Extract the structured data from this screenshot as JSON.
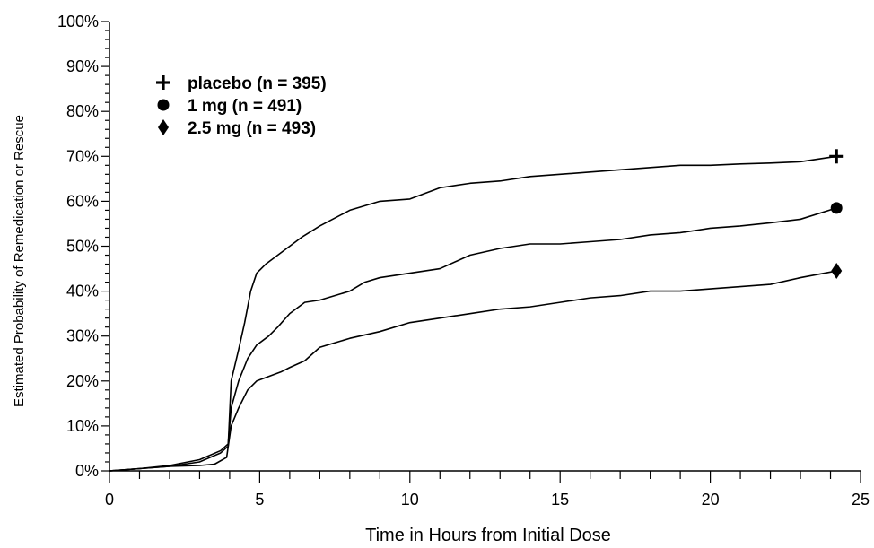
{
  "chart_data": {
    "type": "line",
    "title": "",
    "xlabel": "Time in Hours from Initial Dose",
    "ylabel": "Estimated Probability of Remedication or Rescue",
    "xlim": [
      0,
      25
    ],
    "ylim": [
      0,
      100
    ],
    "x_ticks": [
      0,
      5,
      10,
      15,
      20,
      25
    ],
    "x_tick_labels": [
      "0",
      "5",
      "10",
      "15",
      "20",
      "25"
    ],
    "y_ticks": [
      0,
      10,
      20,
      30,
      40,
      50,
      60,
      70,
      80,
      90,
      100
    ],
    "y_tick_labels": [
      "0%",
      "10%",
      "20%",
      "30%",
      "40%",
      "50%",
      "60%",
      "70%",
      "80%",
      "90%",
      "100%"
    ],
    "grid": false,
    "legend_position": "top-left",
    "colors": {
      "line": "#000000",
      "axis": "#000000",
      "text": "#000000"
    },
    "series": [
      {
        "name": "placebo (n = 395)",
        "marker": "cross",
        "end_marker_x": 24.2,
        "end_marker_y": 70,
        "points": [
          [
            0,
            0
          ],
          [
            1,
            0.5
          ],
          [
            2,
            1
          ],
          [
            3,
            2
          ],
          [
            3.7,
            4
          ],
          [
            3.95,
            5.5
          ],
          [
            4.05,
            20
          ],
          [
            4.3,
            27
          ],
          [
            4.5,
            33
          ],
          [
            4.7,
            40
          ],
          [
            4.9,
            44
          ],
          [
            5.2,
            46
          ],
          [
            5.6,
            48
          ],
          [
            6,
            50
          ],
          [
            6.4,
            52
          ],
          [
            7,
            54.5
          ],
          [
            8,
            58
          ],
          [
            9,
            60
          ],
          [
            10,
            60.5
          ],
          [
            11,
            63
          ],
          [
            12,
            64
          ],
          [
            13,
            64.5
          ],
          [
            14,
            65.5
          ],
          [
            15,
            66
          ],
          [
            16,
            66.5
          ],
          [
            17,
            67
          ],
          [
            18,
            67.5
          ],
          [
            19,
            68
          ],
          [
            20,
            68
          ],
          [
            21,
            68.3
          ],
          [
            22,
            68.5
          ],
          [
            23,
            68.8
          ],
          [
            24.2,
            70
          ]
        ]
      },
      {
        "name": "1 mg (n = 491)",
        "marker": "circle",
        "end_marker_x": 24.2,
        "end_marker_y": 58.5,
        "points": [
          [
            0,
            0
          ],
          [
            1,
            0.5
          ],
          [
            2,
            1.2
          ],
          [
            3,
            2.5
          ],
          [
            3.7,
            4.5
          ],
          [
            3.95,
            6
          ],
          [
            4.05,
            14
          ],
          [
            4.3,
            20
          ],
          [
            4.6,
            25
          ],
          [
            4.9,
            28
          ],
          [
            5.3,
            30
          ],
          [
            5.6,
            32
          ],
          [
            6,
            35
          ],
          [
            6.5,
            37.5
          ],
          [
            7,
            38
          ],
          [
            8,
            40
          ],
          [
            8.5,
            42
          ],
          [
            9,
            43
          ],
          [
            10,
            44
          ],
          [
            11,
            45
          ],
          [
            12,
            48
          ],
          [
            13,
            49.5
          ],
          [
            14,
            50.5
          ],
          [
            15,
            50.5
          ],
          [
            16,
            51
          ],
          [
            17,
            51.5
          ],
          [
            18,
            52.5
          ],
          [
            19,
            53
          ],
          [
            20,
            54
          ],
          [
            21,
            54.5
          ],
          [
            22,
            55.2
          ],
          [
            23,
            56
          ],
          [
            24.2,
            58.5
          ]
        ]
      },
      {
        "name": "2.5 mg (n = 493)",
        "marker": "diamond",
        "end_marker_x": 24.2,
        "end_marker_y": 44.5,
        "points": [
          [
            0,
            0
          ],
          [
            1,
            0.5
          ],
          [
            2,
            1
          ],
          [
            3,
            1.2
          ],
          [
            3.5,
            1.5
          ],
          [
            3.9,
            3
          ],
          [
            4.05,
            10
          ],
          [
            4.3,
            14
          ],
          [
            4.6,
            18
          ],
          [
            4.9,
            20
          ],
          [
            5.3,
            21
          ],
          [
            5.7,
            22
          ],
          [
            6,
            23
          ],
          [
            6.5,
            24.5
          ],
          [
            7,
            27.5
          ],
          [
            8,
            29.5
          ],
          [
            9,
            31
          ],
          [
            10,
            33
          ],
          [
            11,
            34
          ],
          [
            12,
            35
          ],
          [
            13,
            36
          ],
          [
            14,
            36.5
          ],
          [
            15,
            37.5
          ],
          [
            16,
            38.5
          ],
          [
            17,
            39
          ],
          [
            18,
            40
          ],
          [
            19,
            40
          ],
          [
            20,
            40.5
          ],
          [
            21,
            41
          ],
          [
            22,
            41.5
          ],
          [
            23,
            43
          ],
          [
            24.2,
            44.5
          ]
        ]
      }
    ]
  }
}
